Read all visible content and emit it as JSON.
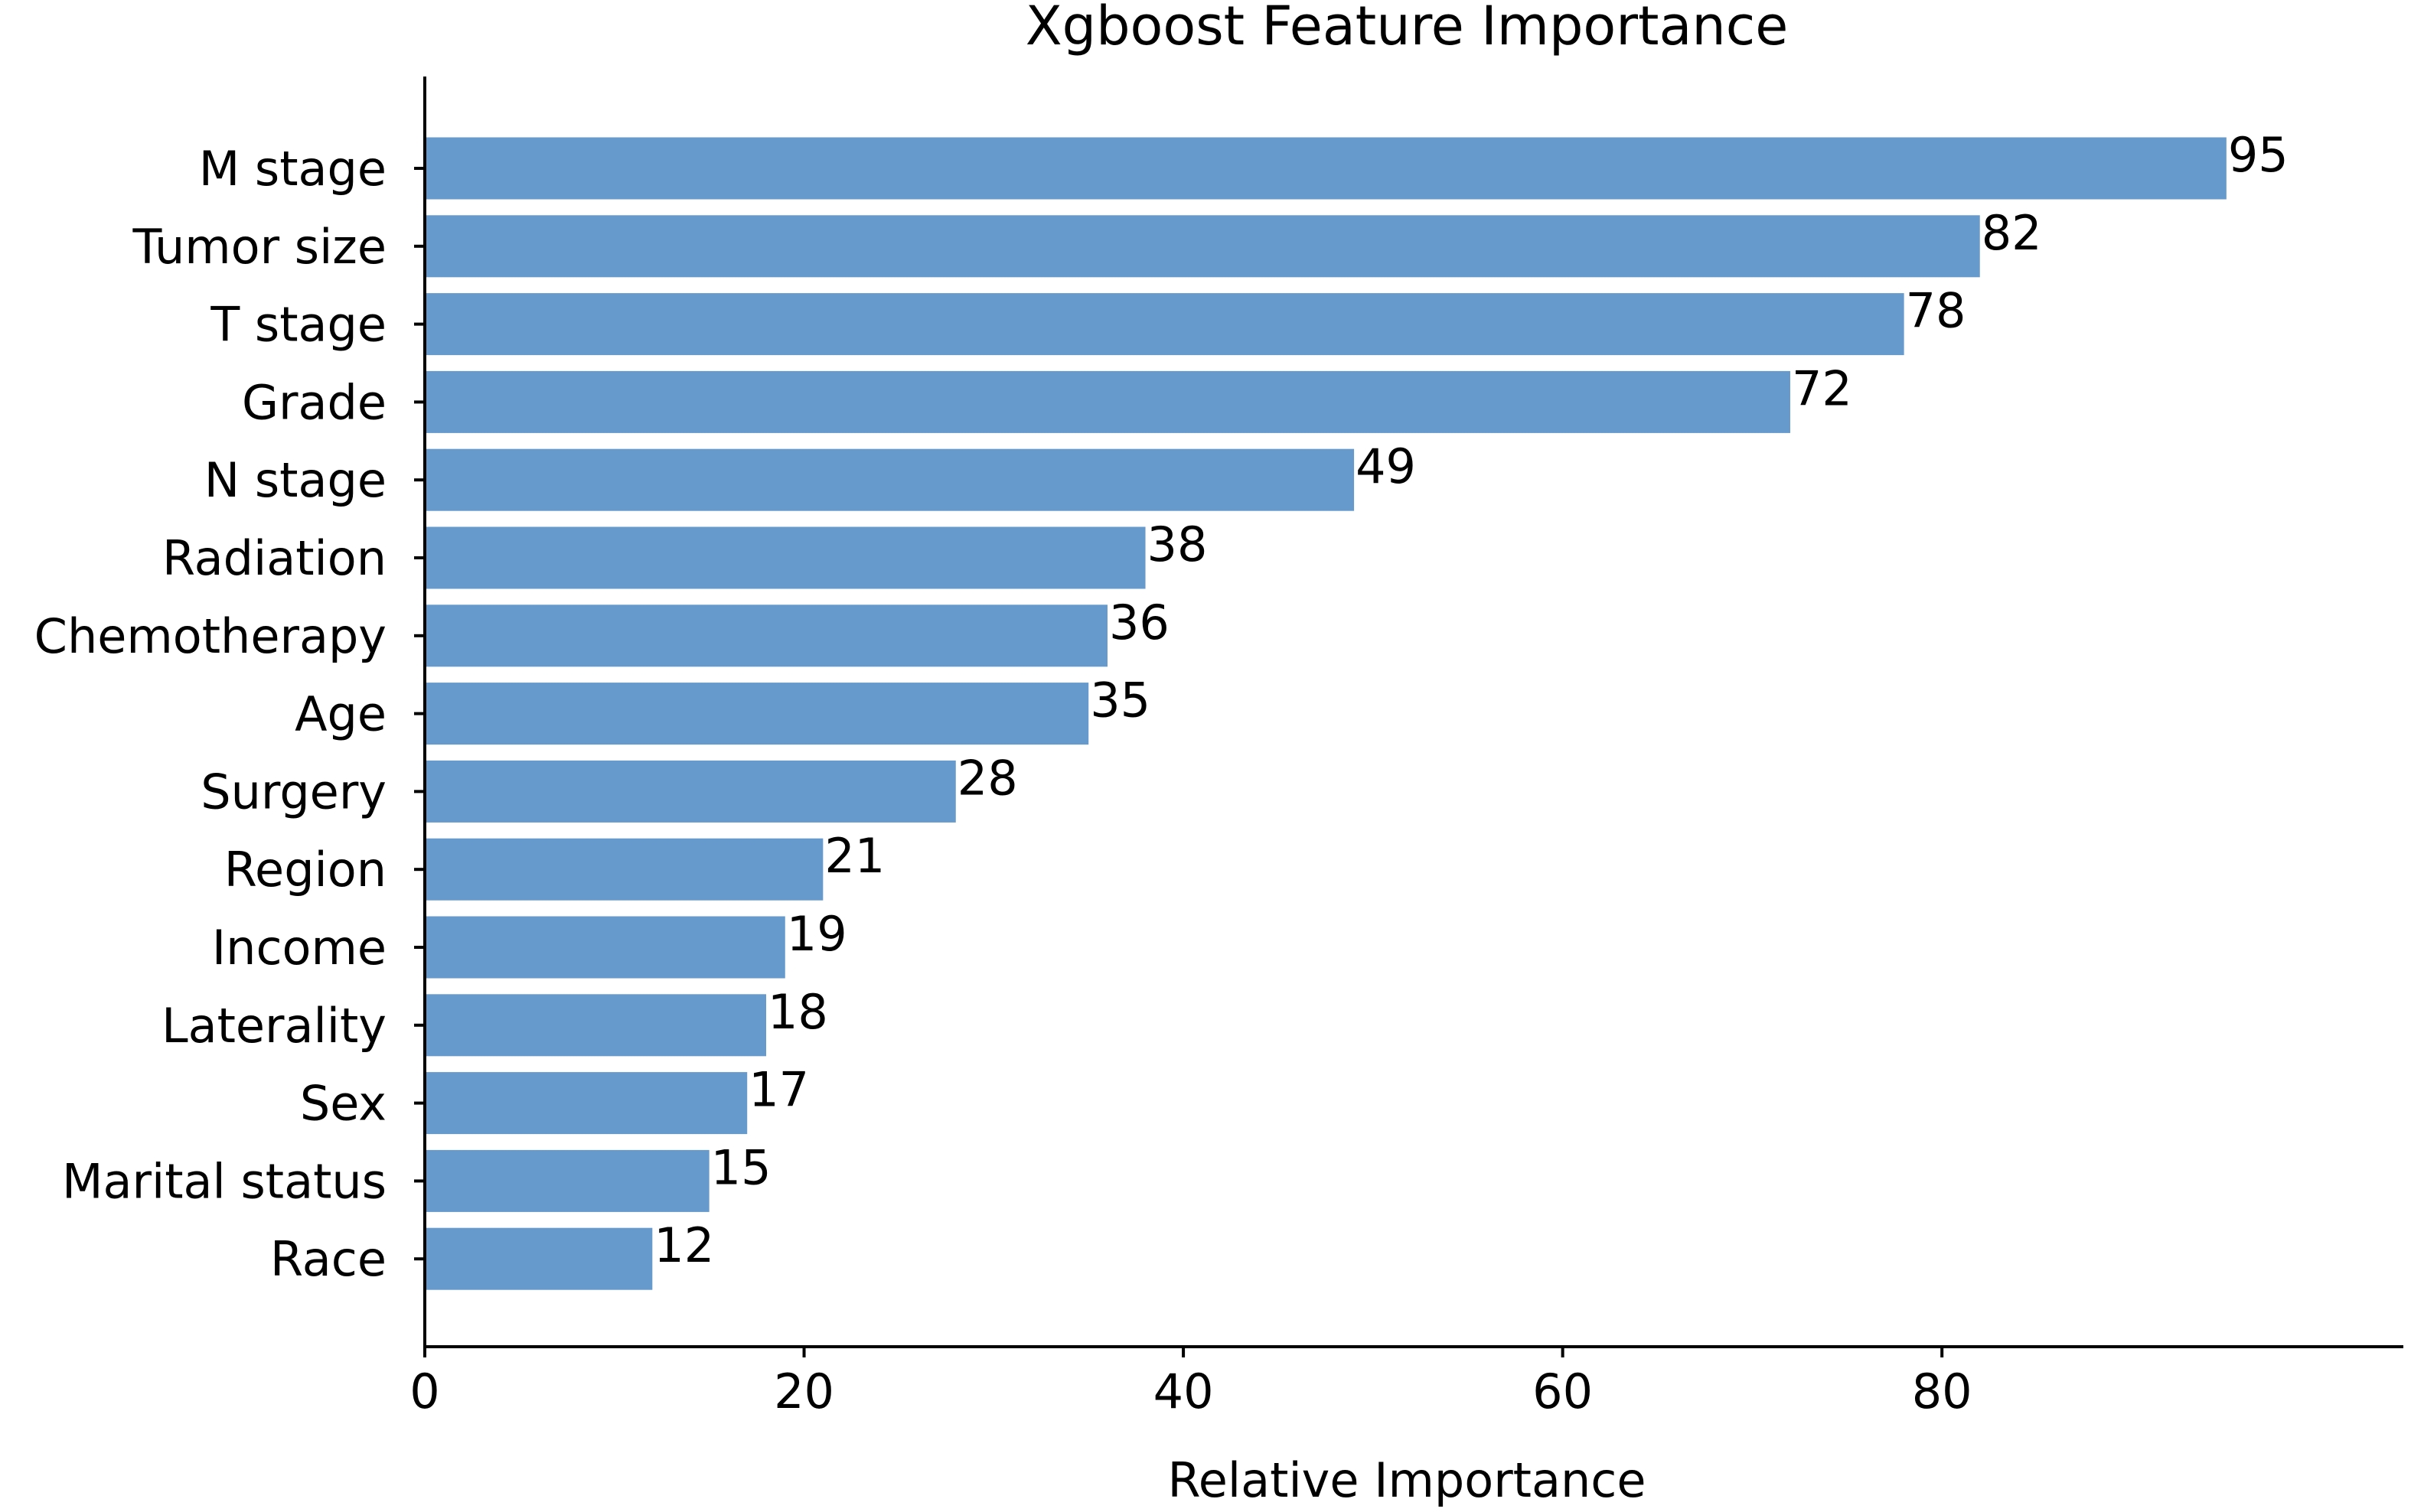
{
  "chart_data": {
    "type": "bar",
    "orientation": "horizontal",
    "title": "Xgboost Feature Importance",
    "xlabel": "Relative Importance",
    "ylabel": "",
    "categories": [
      "M stage",
      "Tumor size",
      "T stage",
      "Grade",
      "N stage",
      "Radiation",
      "Chemotherapy",
      "Age",
      "Surgery",
      "Region",
      "Income",
      "Laterality",
      "Sex",
      "Marital status",
      "Race"
    ],
    "values": [
      95,
      82,
      78,
      72,
      49,
      38,
      36,
      35,
      28,
      21,
      19,
      18,
      17,
      15,
      12
    ],
    "xlim": [
      0,
      100
    ],
    "xticks": [
      0,
      20,
      40,
      60,
      80
    ],
    "bar_color": "#6699cc",
    "grid": false,
    "legend": "none"
  }
}
